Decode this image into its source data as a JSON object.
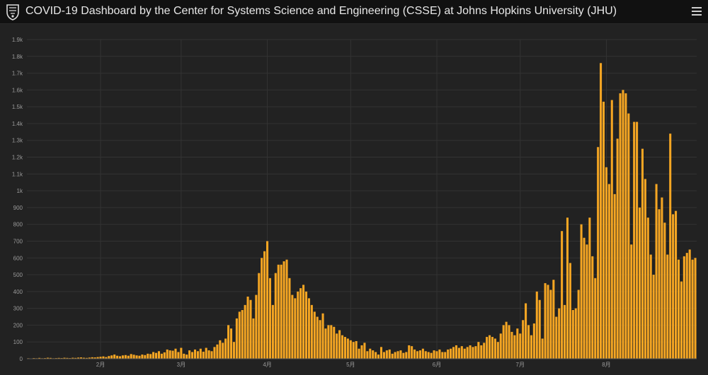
{
  "header": {
    "title": "COVID-19 Dashboard by the Center for Systems Science and Engineering (CSSE) at Johns Hopkins University (JHU)",
    "logo_icon": "jhu-shield-icon",
    "menu_icon": "hamburger-menu-icon"
  },
  "colors": {
    "background": "#222222",
    "header_bg": "#111111",
    "bar": "#f5a623",
    "bar_stroke": "#b87300",
    "grid": "#333333",
    "tick_text": "#9a9a9a"
  },
  "chart_data": {
    "type": "bar",
    "title": "",
    "xlabel": "",
    "ylabel": "",
    "ylim": [
      0,
      1900
    ],
    "yticks": [
      0,
      100,
      200,
      300,
      400,
      500,
      600,
      700,
      800,
      900,
      1000,
      1100,
      1200,
      1300,
      1400,
      1500,
      1600,
      1700,
      1800,
      1900
    ],
    "ytick_labels": [
      "0",
      "100",
      "200",
      "300",
      "400",
      "500",
      "600",
      "700",
      "800",
      "900",
      "1k",
      "1.1k",
      "1.2k",
      "1.3k",
      "1.4k",
      "1.5k",
      "1.6k",
      "1.7k",
      "1.8k",
      "1.9k"
    ],
    "xtick_labels": [
      {
        "label": "2月",
        "index": 26
      },
      {
        "label": "3月",
        "index": 55
      },
      {
        "label": "4月",
        "index": 86
      },
      {
        "label": "5月",
        "index": 116
      },
      {
        "label": "6月",
        "index": 147
      },
      {
        "label": "7月",
        "index": 177
      },
      {
        "label": "8月",
        "index": 208
      }
    ],
    "grid": true,
    "values": [
      3,
      2,
      4,
      3,
      5,
      3,
      4,
      6,
      5,
      3,
      4,
      5,
      4,
      6,
      5,
      4,
      6,
      5,
      7,
      8,
      6,
      5,
      7,
      9,
      8,
      10,
      12,
      14,
      10,
      16,
      20,
      25,
      18,
      15,
      20,
      22,
      18,
      28,
      24,
      20,
      18,
      25,
      22,
      30,
      28,
      40,
      35,
      45,
      30,
      38,
      55,
      50,
      48,
      60,
      40,
      65,
      30,
      25,
      50,
      40,
      55,
      45,
      60,
      42,
      65,
      50,
      45,
      70,
      85,
      110,
      95,
      120,
      200,
      180,
      100,
      240,
      280,
      290,
      320,
      370,
      350,
      240,
      380,
      510,
      600,
      640,
      700,
      480,
      320,
      510,
      560,
      560,
      580,
      590,
      480,
      380,
      360,
      400,
      420,
      440,
      400,
      360,
      320,
      280,
      250,
      230,
      270,
      180,
      200,
      200,
      190,
      150,
      170,
      140,
      130,
      120,
      110,
      100,
      105,
      60,
      80,
      95,
      45,
      60,
      50,
      40,
      25,
      70,
      40,
      50,
      55,
      30,
      40,
      45,
      50,
      35,
      40,
      80,
      75,
      55,
      45,
      50,
      60,
      45,
      40,
      35,
      50,
      45,
      55,
      40,
      40,
      55,
      60,
      70,
      80,
      65,
      75,
      60,
      70,
      80,
      70,
      75,
      100,
      80,
      95,
      130,
      140,
      130,
      120,
      100,
      150,
      200,
      220,
      200,
      160,
      140,
      180,
      150,
      230,
      330,
      200,
      140,
      210,
      400,
      350,
      120,
      450,
      440,
      410,
      470,
      250,
      300,
      760,
      320,
      840,
      570,
      290,
      300,
      410,
      800,
      720,
      680,
      840,
      610,
      480,
      1260,
      1760,
      1530,
      1140,
      1040,
      1540,
      980,
      1310,
      1580,
      1600,
      1580,
      1460,
      680,
      1410,
      1410,
      900,
      1250,
      1070,
      840,
      620,
      500,
      1040,
      890,
      960,
      810,
      620,
      1340,
      860,
      880,
      590,
      460,
      610,
      630,
      650,
      590,
      600
    ]
  }
}
